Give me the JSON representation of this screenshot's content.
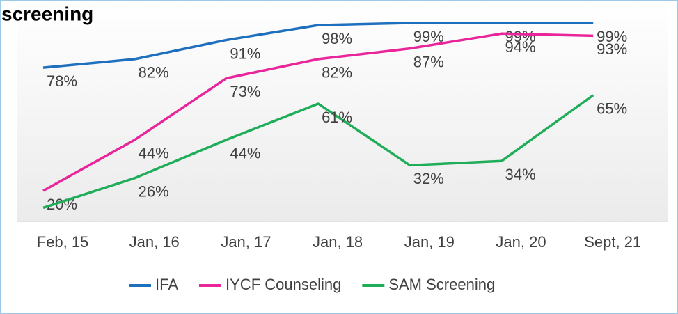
{
  "chart_data": {
    "type": "line",
    "title": "screening",
    "categories": [
      "Feb, 15",
      "Jan, 16",
      "Jan, 17",
      "Jan, 18",
      "Jan, 19",
      "Jan, 20",
      "Sept, 21"
    ],
    "series": [
      {
        "name": "IFA",
        "color": "#1f6fbf",
        "values": [
          78,
          82,
          91,
          98,
          99,
          99,
          99
        ],
        "value_labels": [
          "78%",
          "82%",
          "91%",
          "98%",
          "99%",
          "99%",
          "99%"
        ]
      },
      {
        "name": "IYCF Counseling",
        "color": "#e8259a",
        "values": [
          20,
          44,
          73,
          82,
          87,
          94,
          93
        ],
        "value_labels": [
          "20%",
          "44%",
          "73%",
          "82%",
          "87%",
          "94%",
          "93%"
        ]
      },
      {
        "name": "SAM Screening",
        "color": "#1fad5a",
        "values": [
          12,
          26,
          44,
          61,
          32,
          34,
          65
        ],
        "value_labels": [
          null,
          "26%",
          "44%",
          "61%",
          "32%",
          "34%",
          "65%"
        ]
      }
    ],
    "ylim": [
      0,
      100
    ],
    "legend": "bottom"
  }
}
